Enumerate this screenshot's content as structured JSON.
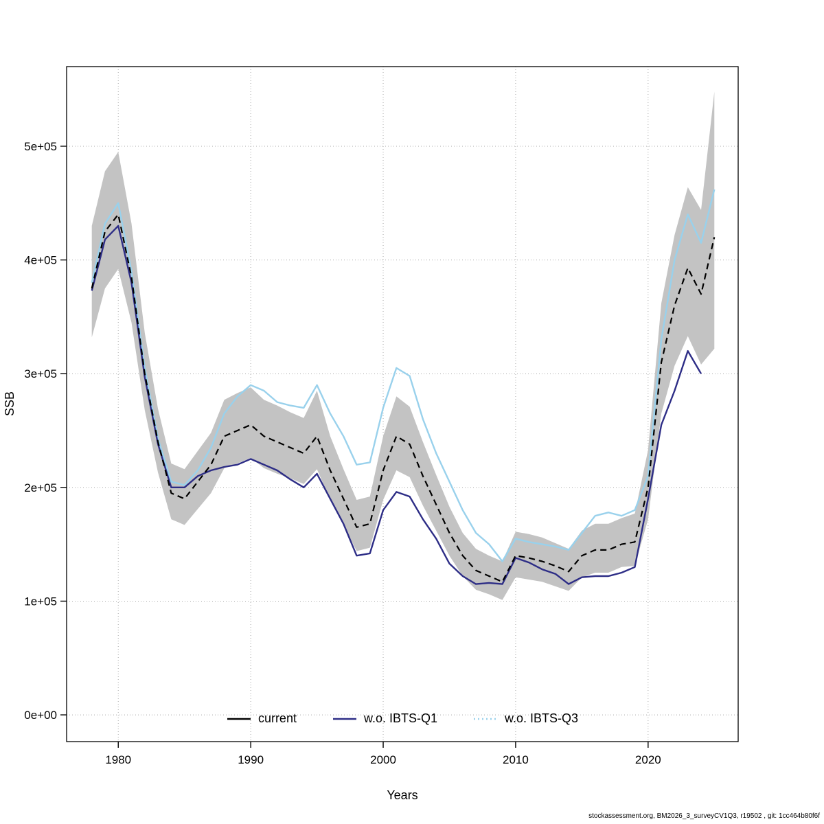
{
  "footer": {
    "text": "stockassessment.org, BM2026_3_surveyCV1Q3, r19502 , git: 1cc464b80f6f"
  },
  "chart_data": {
    "type": "line",
    "title": "",
    "xlabel": "Years",
    "ylabel": "SSB",
    "xlim": [
      1976.1,
      2026.8
    ],
    "ylim": [
      -23500,
      570000
    ],
    "x_ticks": [
      1980,
      1990,
      2000,
      2010,
      2020
    ],
    "y_ticks": [
      0,
      100000,
      200000,
      300000,
      400000,
      500000
    ],
    "y_tick_labels": [
      "0e+00",
      "1e+05",
      "2e+05",
      "3e+05",
      "4e+05",
      "5e+05"
    ],
    "grid": true,
    "legend_position": "bottom-center",
    "band_color": "#c3c3c3",
    "years": [
      1978,
      1979,
      1980,
      1981,
      1982,
      1983,
      1984,
      1985,
      1986,
      1987,
      1988,
      1989,
      1990,
      1991,
      1992,
      1993,
      1994,
      1995,
      1996,
      1997,
      1998,
      1999,
      2000,
      2001,
      2002,
      2003,
      2004,
      2005,
      2006,
      2007,
      2008,
      2009,
      2010,
      2011,
      2012,
      2013,
      2014,
      2015,
      2016,
      2017,
      2018,
      2019,
      2020,
      2021,
      2022,
      2023,
      2024,
      2025
    ],
    "series": [
      {
        "name": "current",
        "color": "#000000",
        "plot_dash": "dashed",
        "legend_dash": "solid",
        "width": 2.2,
        "values": [
          375000,
          425000,
          440000,
          385000,
          300000,
          240000,
          195000,
          190000,
          205000,
          220000,
          245000,
          250000,
          255000,
          245000,
          240000,
          235000,
          230000,
          245000,
          215000,
          190000,
          165000,
          168000,
          215000,
          245000,
          238000,
          210000,
          185000,
          160000,
          140000,
          127000,
          122000,
          117000,
          140000,
          138000,
          135000,
          131000,
          126000,
          140000,
          145000,
          145000,
          150000,
          152000,
          200000,
          310000,
          360000,
          393000,
          370000,
          420000
        ],
        "band_lower": [
          332000,
          375000,
          392000,
          345000,
          268000,
          213000,
          172000,
          167000,
          181000,
          195000,
          217000,
          221000,
          226000,
          217000,
          212000,
          208000,
          203000,
          216000,
          189000,
          167000,
          144000,
          147000,
          189000,
          215000,
          209000,
          184000,
          162000,
          140000,
          122000,
          110000,
          106000,
          101000,
          121000,
          119000,
          117000,
          113000,
          109000,
          121000,
          125000,
          125000,
          130000,
          131000,
          172000,
          265000,
          307000,
          333000,
          308000,
          322000
        ],
        "band_upper": [
          430000,
          478000,
          495000,
          432000,
          336000,
          269000,
          221000,
          216000,
          232000,
          248000,
          277000,
          283000,
          288000,
          277000,
          272000,
          266000,
          261000,
          285000,
          245000,
          216000,
          189000,
          192000,
          245000,
          280000,
          271000,
          240000,
          211000,
          183000,
          160000,
          146000,
          140000,
          135000,
          161000,
          159000,
          156000,
          151000,
          146000,
          162000,
          168000,
          168000,
          173000,
          177000,
          233000,
          362000,
          422000,
          464000,
          444000,
          548000
        ]
      },
      {
        "name": "w.o. IBTS-Q1",
        "color": "#2d2d86",
        "plot_dash": "solid",
        "legend_dash": "solid",
        "width": 2.4,
        "values": [
          373000,
          418000,
          430000,
          380000,
          297000,
          238000,
          200000,
          200000,
          210000,
          215000,
          218000,
          220000,
          225000,
          220000,
          215000,
          207000,
          200000,
          212000,
          190000,
          168000,
          140000,
          142000,
          180000,
          196000,
          192000,
          172000,
          155000,
          133000,
          122000,
          115000,
          116000,
          115000,
          138000,
          134000,
          128000,
          124000,
          115000,
          121000,
          122000,
          122000,
          125000,
          130000,
          190000,
          255000,
          285000,
          320000,
          300000,
          null
        ]
      },
      {
        "name": "w.o. IBTS-Q3",
        "color": "#99d1ec",
        "plot_dash": "solid",
        "legend_dash": "dotted",
        "width": 2.4,
        "values": [
          380000,
          432000,
          450000,
          390000,
          305000,
          243000,
          205000,
          202000,
          215000,
          235000,
          265000,
          280000,
          290000,
          285000,
          275000,
          272000,
          270000,
          290000,
          265000,
          245000,
          220000,
          222000,
          270000,
          305000,
          298000,
          260000,
          230000,
          205000,
          180000,
          160000,
          150000,
          135000,
          155000,
          152000,
          150000,
          148000,
          145000,
          160000,
          175000,
          178000,
          175000,
          180000,
          210000,
          330000,
          400000,
          440000,
          415000,
          462000
        ]
      }
    ]
  }
}
